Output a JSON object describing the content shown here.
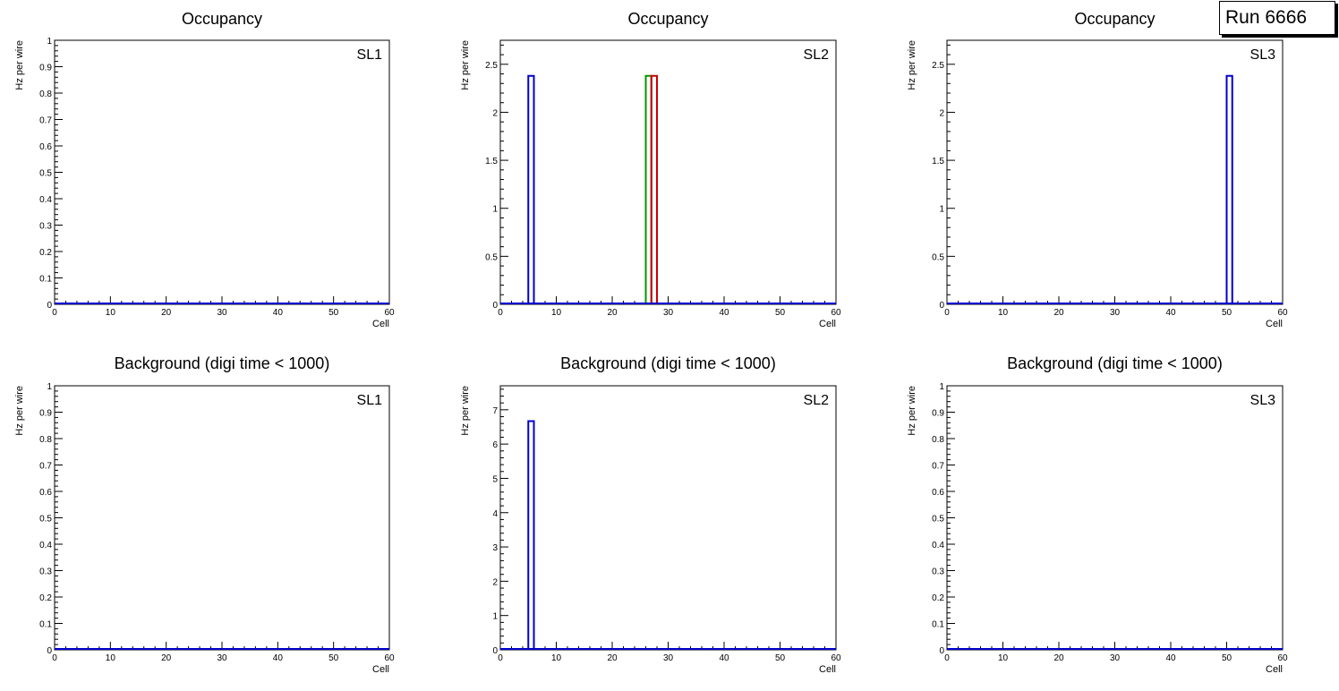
{
  "run_label": "Run 6666",
  "colors": {
    "blue": "#0000cc",
    "green": "#009900",
    "red": "#cc0000",
    "axis": "#000000"
  },
  "chart_data": [
    {
      "type": "histogram",
      "title": "Occupancy",
      "tag": "SL1",
      "xlabel": "Cell",
      "ylabel": "Hz per wire",
      "xlim": [
        0,
        60
      ],
      "ylim": [
        0,
        1
      ],
      "xticks": [
        0,
        10,
        20,
        30,
        40,
        50,
        60
      ],
      "yticks": [
        0,
        0.1,
        0.2,
        0.3,
        0.4,
        0.5,
        0.6,
        0.7,
        0.8,
        0.9,
        1
      ],
      "series": [
        {
          "name": "layer-blue",
          "color": "blue",
          "bins": []
        }
      ]
    },
    {
      "type": "histogram",
      "title": "Occupancy",
      "tag": "SL2",
      "xlabel": "Cell",
      "ylabel": "Hz per wire",
      "xlim": [
        0,
        60
      ],
      "ylim": [
        0,
        2.75
      ],
      "xticks": [
        0,
        10,
        20,
        30,
        40,
        50,
        60
      ],
      "yticks": [
        0,
        0.5,
        1,
        1.5,
        2,
        2.5
      ],
      "series": [
        {
          "name": "layer-blue",
          "color": "blue",
          "bins": [
            {
              "x0": 5,
              "x1": 6,
              "value": 2.38
            }
          ]
        },
        {
          "name": "layer-green",
          "color": "green",
          "bins": [
            {
              "x0": 26,
              "x1": 27,
              "value": 2.38
            }
          ]
        },
        {
          "name": "layer-red",
          "color": "red",
          "bins": [
            {
              "x0": 27,
              "x1": 28,
              "value": 2.38
            }
          ]
        }
      ]
    },
    {
      "type": "histogram",
      "title": "Occupancy",
      "tag": "SL3",
      "xlabel": "Cell",
      "ylabel": "Hz per wire",
      "xlim": [
        0,
        60
      ],
      "ylim": [
        0,
        2.75
      ],
      "xticks": [
        0,
        10,
        20,
        30,
        40,
        50,
        60
      ],
      "yticks": [
        0,
        0.5,
        1,
        1.5,
        2,
        2.5
      ],
      "series": [
        {
          "name": "layer-blue",
          "color": "blue",
          "bins": [
            {
              "x0": 50,
              "x1": 51,
              "value": 2.38
            }
          ]
        }
      ]
    },
    {
      "type": "histogram",
      "title": "Background (digi time < 1000)",
      "tag": "SL1",
      "xlabel": "Cell",
      "ylabel": "Hz per wire",
      "xlim": [
        0,
        60
      ],
      "ylim": [
        0,
        1
      ],
      "xticks": [
        0,
        10,
        20,
        30,
        40,
        50,
        60
      ],
      "yticks": [
        0,
        0.1,
        0.2,
        0.3,
        0.4,
        0.5,
        0.6,
        0.7,
        0.8,
        0.9,
        1
      ],
      "series": [
        {
          "name": "layer-blue",
          "color": "blue",
          "bins": []
        }
      ]
    },
    {
      "type": "histogram",
      "title": "Background (digi time < 1000)",
      "tag": "SL2",
      "xlabel": "Cell",
      "ylabel": "Hz per wire",
      "xlim": [
        0,
        60
      ],
      "ylim": [
        0,
        7.7
      ],
      "xticks": [
        0,
        10,
        20,
        30,
        40,
        50,
        60
      ],
      "yticks": [
        0,
        1,
        2,
        3,
        4,
        5,
        6,
        7
      ],
      "series": [
        {
          "name": "layer-blue",
          "color": "blue",
          "bins": [
            {
              "x0": 5,
              "x1": 6,
              "value": 6.67
            }
          ]
        }
      ]
    },
    {
      "type": "histogram",
      "title": "Background (digi time < 1000)",
      "tag": "SL3",
      "xlabel": "Cell",
      "ylabel": "Hz per wire",
      "xlim": [
        0,
        60
      ],
      "ylim": [
        0,
        1
      ],
      "xticks": [
        0,
        10,
        20,
        30,
        40,
        50,
        60
      ],
      "yticks": [
        0,
        0.1,
        0.2,
        0.3,
        0.4,
        0.5,
        0.6,
        0.7,
        0.8,
        0.9,
        1
      ],
      "series": [
        {
          "name": "layer-blue",
          "color": "blue",
          "bins": []
        }
      ]
    }
  ]
}
